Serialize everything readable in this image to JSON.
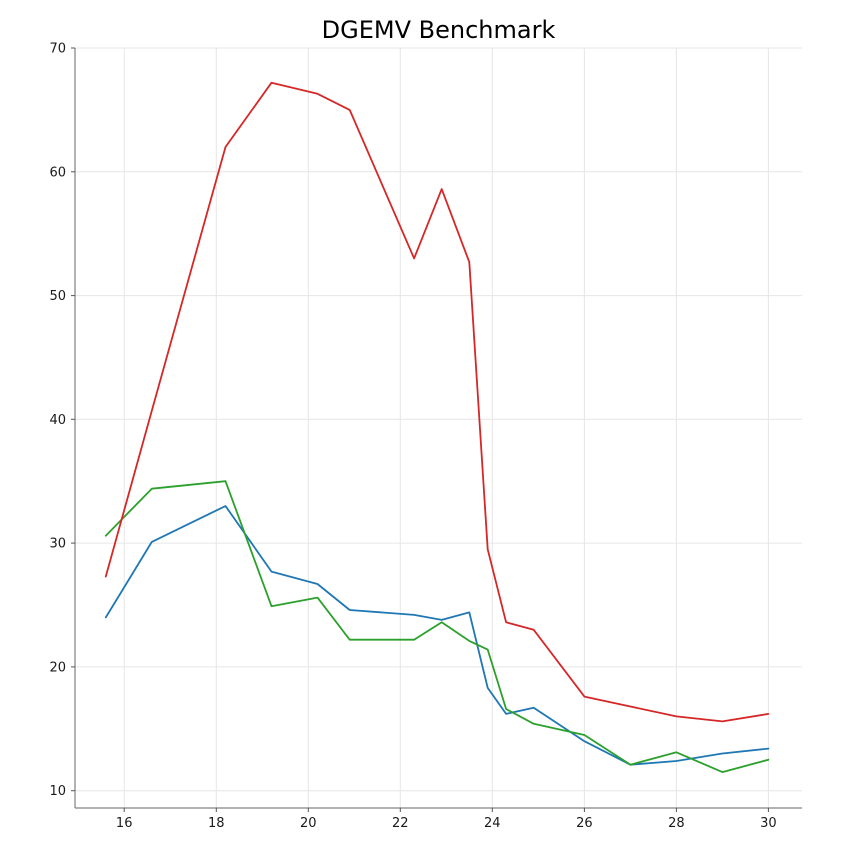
{
  "chart": {
    "title": "DGEMV Benchmark"
  },
  "chart_data": {
    "type": "line",
    "title": "DGEMV Benchmark",
    "xlabel": "",
    "ylabel": "",
    "legend": "none",
    "grid": true,
    "x": [
      15.6,
      16.6,
      18.2,
      19.2,
      20.2,
      20.9,
      22.3,
      22.9,
      23.5,
      23.9,
      24.3,
      24.9,
      26,
      27,
      28,
      29,
      30
    ],
    "series": [
      {
        "name": "blue-series",
        "color": "#1f77b4",
        "values": [
          24.0,
          30.1,
          33.0,
          27.7,
          26.7,
          24.6,
          24.2,
          23.8,
          24.4,
          18.3,
          16.2,
          16.7,
          14.0,
          12.1,
          12.4,
          13.0,
          13.4
        ]
      },
      {
        "name": "green-series",
        "color": "#2ca02c",
        "values": [
          30.6,
          34.4,
          35.0,
          24.9,
          25.6,
          22.2,
          22.2,
          23.6,
          22.1,
          21.4,
          16.6,
          15.4,
          14.5,
          12.1,
          13.1,
          11.5,
          12.5
        ]
      },
      {
        "name": "red-series",
        "color": "#d62728",
        "values": [
          27.3,
          40.7,
          62.0,
          67.2,
          66.3,
          65.0,
          53.0,
          58.6,
          52.7,
          29.5,
          23.6,
          23.0,
          17.6,
          16.8,
          16.0,
          15.6,
          16.2
        ]
      }
    ],
    "xlim": [
      14.93,
      30.73
    ],
    "ylim": [
      8.6,
      70
    ],
    "x_ticks": [
      16,
      18,
      20,
      22,
      24,
      26,
      28,
      30
    ],
    "y_ticks": [
      10,
      20,
      30,
      40,
      50,
      60,
      70
    ]
  },
  "style": {
    "background": "#ffffff",
    "grid_color": "#e6e6e6",
    "spine_color": "#666666",
    "tick_color": "#555555",
    "label_color": "#1a1a1a",
    "title_color": "#000000",
    "line_width": 1.8
  }
}
